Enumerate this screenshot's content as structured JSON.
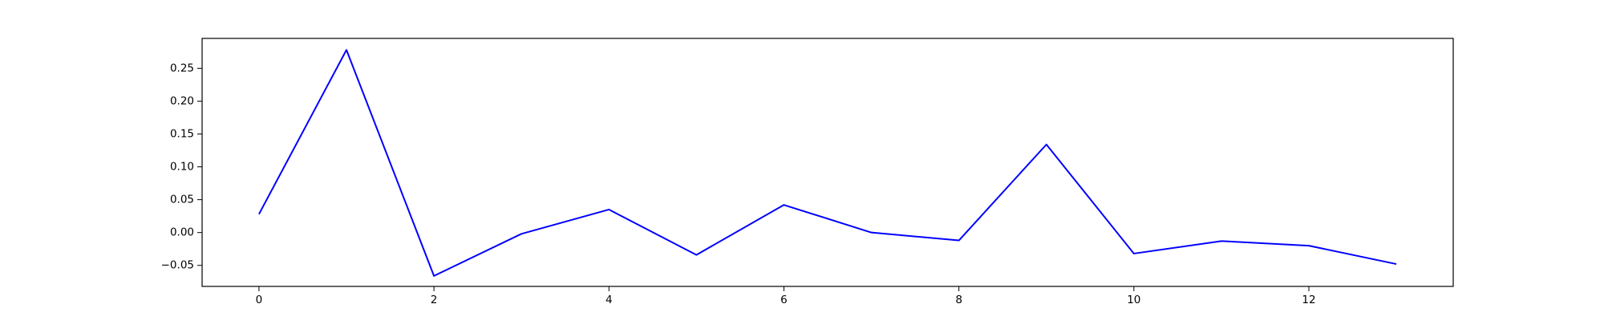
{
  "chart_data": {
    "type": "line",
    "title": "",
    "xlabel": "",
    "ylabel": "",
    "grid": false,
    "legend": "none",
    "xlim": [
      -0.65,
      13.65
    ],
    "ylim": [
      -0.082,
      0.2955
    ],
    "x_ticks": [
      0,
      2,
      4,
      6,
      8,
      10,
      12
    ],
    "x_tick_labels": [
      "0",
      "2",
      "4",
      "6",
      "8",
      "10",
      "12"
    ],
    "y_ticks": [
      -0.05,
      0.0,
      0.05,
      0.1,
      0.15,
      0.2,
      0.25
    ],
    "y_tick_labels": [
      "−0.05",
      "0.00",
      "0.05",
      "0.10",
      "0.15",
      "0.20",
      "0.25"
    ],
    "series": [
      {
        "color": "#0000ff",
        "x": [
          0,
          1,
          2,
          3,
          4,
          5,
          6,
          7,
          8,
          9,
          10,
          11,
          12,
          13
        ],
        "y": [
          0.028,
          0.278,
          -0.066,
          -0.002,
          0.035,
          -0.034,
          0.042,
          0.0,
          -0.012,
          0.134,
          -0.032,
          -0.013,
          -0.02,
          -0.048
        ]
      }
    ]
  }
}
